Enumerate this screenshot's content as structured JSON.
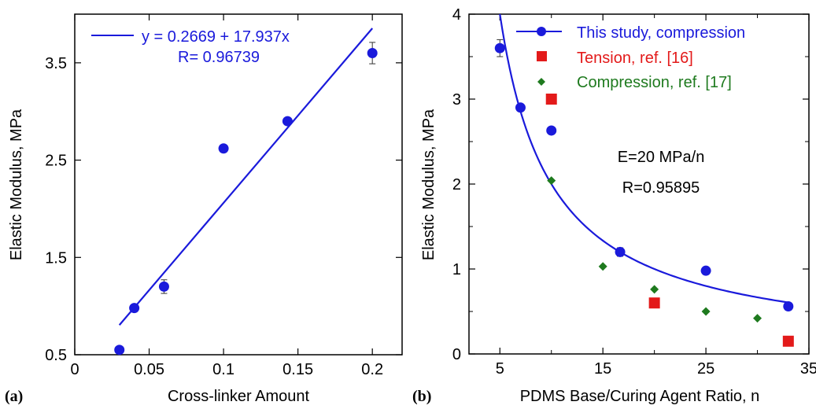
{
  "chart_data": [
    {
      "panel_label": "(a)",
      "type": "scatter",
      "xlabel": "Cross-linker Amount",
      "ylabel": "Elastic Modulus, MPa",
      "xlim": [
        0,
        0.22
      ],
      "ylim": [
        0.5,
        4.0
      ],
      "xticks": [
        0,
        0.05,
        0.1,
        0.15,
        0.2
      ],
      "xtick_labels": [
        "0",
        "0.05",
        "0.1",
        "0.15",
        "0.2"
      ],
      "yticks": [
        0.5,
        1.5,
        2.5,
        3.5
      ],
      "ytick_labels": [
        "0.5",
        "1.5",
        "2.5",
        "3.5"
      ],
      "grid": false,
      "legend_position": "top-left",
      "series": [
        {
          "type": "scatter",
          "color": "#1a1adb",
          "marker": "circle",
          "points": [
            {
              "x": 0.03,
              "y": 0.55,
              "err": 0
            },
            {
              "x": 0.04,
              "y": 0.98,
              "err": 0
            },
            {
              "x": 0.06,
              "y": 1.2,
              "err": 0.07
            },
            {
              "x": 0.1,
              "y": 2.62,
              "err": 0
            },
            {
              "x": 0.143,
              "y": 2.9,
              "err": 0
            },
            {
              "x": 0.2,
              "y": 3.6,
              "err": 0.11
            }
          ]
        },
        {
          "type": "line",
          "name": "y = 0.2669 + 17.937x",
          "color": "#1a1adb",
          "intercept": 0.2669,
          "slope": 17.937,
          "x_range": [
            0.03,
            0.2
          ]
        }
      ],
      "annotations": [
        {
          "text": "R= 0.96739",
          "color": "#1a1adb"
        }
      ]
    },
    {
      "panel_label": "(b)",
      "type": "scatter",
      "xlabel": "PDMS Base/Curing Agent Ratio, n",
      "ylabel": "Elastic Modulus, MPa",
      "xlim": [
        2,
        35
      ],
      "ylim": [
        0,
        4
      ],
      "xticks": [
        5,
        15,
        25,
        35
      ],
      "xtick_labels": [
        "5",
        "15",
        "25",
        "35"
      ],
      "minor_xticks": [
        10,
        20,
        30
      ],
      "yticks": [
        0,
        1,
        2,
        3,
        4
      ],
      "ytick_labels": [
        "0",
        "1",
        "2",
        "3",
        "4"
      ],
      "minor_yticks": [
        0.5,
        1.5,
        2.5,
        3.5
      ],
      "grid": false,
      "legend_position": "top-right",
      "series": [
        {
          "name": "This study, compression",
          "type": "scatter",
          "color": "#1a1adb",
          "marker": "circle",
          "points": [
            {
              "x": 5,
              "y": 3.6,
              "err": 0.1
            },
            {
              "x": 7,
              "y": 2.9,
              "err": 0
            },
            {
              "x": 10,
              "y": 2.63,
              "err": 0
            },
            {
              "x": 16.67,
              "y": 1.2,
              "err": 0.05
            },
            {
              "x": 25,
              "y": 0.98,
              "err": 0
            },
            {
              "x": 33,
              "y": 0.56,
              "err": 0
            }
          ]
        },
        {
          "name": "Tension, ref. [16]",
          "type": "scatter",
          "color": "#e31a1a",
          "marker": "square",
          "points": [
            {
              "x": 10,
              "y": 3.0
            },
            {
              "x": 20,
              "y": 0.6
            },
            {
              "x": 33,
              "y": 0.15
            }
          ]
        },
        {
          "name": "Compression, ref. [17]",
          "type": "scatter",
          "color": "#1e7a1e",
          "marker": "diamond",
          "points": [
            {
              "x": 10,
              "y": 2.04
            },
            {
              "x": 15,
              "y": 1.03
            },
            {
              "x": 20,
              "y": 0.76
            },
            {
              "x": 25,
              "y": 0.5
            },
            {
              "x": 30,
              "y": 0.42
            }
          ]
        },
        {
          "type": "line",
          "fit": "E = 20/n",
          "coefficient": 20,
          "color": "#1a1adb",
          "x_range": [
            5,
            33
          ]
        }
      ],
      "annotations": [
        {
          "text": "E=20 MPa/n",
          "color": "#000000"
        },
        {
          "text": "R=0.95895",
          "color": "#000000"
        }
      ]
    }
  ]
}
